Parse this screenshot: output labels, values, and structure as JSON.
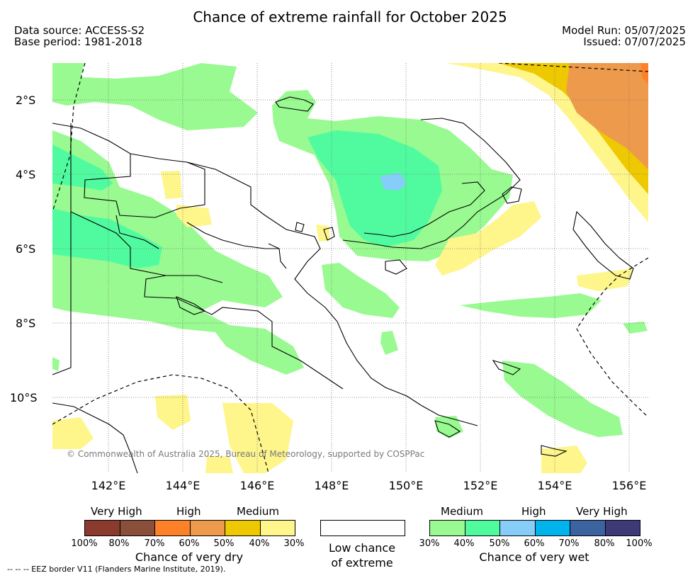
{
  "title": "Chance of extreme rainfall for October 2025",
  "header": {
    "data_source": "Data source: ACCESS-S2",
    "base_period": "Base period: 1981-2018",
    "model_run": "Model Run: 05/07/2025",
    "issued": "Issued: 07/07/2025"
  },
  "map": {
    "lat_ticks": [
      "2°S",
      "4°S",
      "6°S",
      "8°S",
      "10°S"
    ],
    "lon_ticks": [
      "142°E",
      "144°E",
      "146°E",
      "148°E",
      "150°E",
      "152°E",
      "154°E",
      "156°E"
    ],
    "copyright": "© Commonwealth of Australia 2025, Bureau of Meteorology, supported by COSPPac"
  },
  "legend": {
    "dry": {
      "title": "Chance of very dry",
      "levels": [
        "Very High",
        "High",
        "Medium"
      ],
      "ticks": [
        "100%",
        "80%",
        "70%",
        "60%",
        "50%",
        "40%",
        "30%"
      ],
      "colors": [
        "#8b3a2e",
        "#8a4f3a",
        "#fd8129",
        "#ee9a4c",
        "#eec800",
        "#fef58b"
      ]
    },
    "neutral": {
      "title_line1": "Low chance",
      "title_line2": "of extreme"
    },
    "wet": {
      "title": "Chance of very wet",
      "levels": [
        "Medium",
        "High",
        "Very High"
      ],
      "ticks": [
        "30%",
        "40%",
        "50%",
        "60%",
        "70%",
        "80%",
        "100%"
      ],
      "colors": [
        "#98fa90",
        "#50fba0",
        "#87cdfa",
        "#00b3ec",
        "#3a63a0",
        "#3e3a78"
      ]
    },
    "eez_note": "-- -- -- EEZ border V11 (Flanders Marine Institute, 2019)."
  }
}
